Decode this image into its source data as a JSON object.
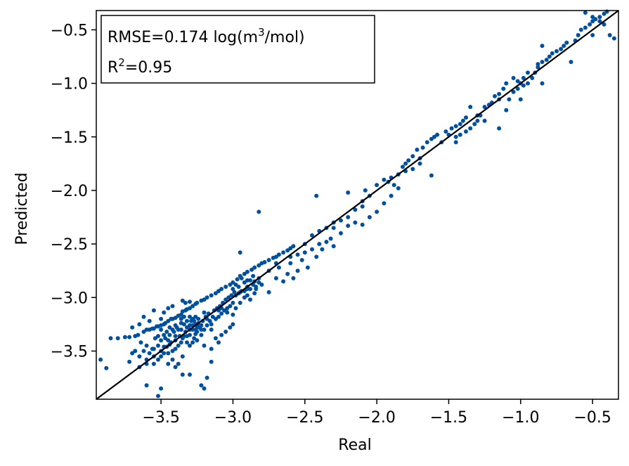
{
  "chart_data": {
    "type": "scatter",
    "xlabel": "Real",
    "ylabel": "Predicted",
    "xlim": [
      -3.95,
      -0.32
    ],
    "ylim": [
      -3.95,
      -0.32
    ],
    "xticks": [
      -3.5,
      -3.0,
      -2.5,
      -2.0,
      -1.5,
      -1.0,
      -0.5
    ],
    "yticks": [
      -3.5,
      -3.0,
      -2.5,
      -2.0,
      -1.5,
      -1.0,
      -0.5
    ],
    "xtick_labels": [
      "−3.5",
      "−3.0",
      "−2.5",
      "−2.0",
      "−1.5",
      "−1.0",
      "−0.5"
    ],
    "ytick_labels": [
      "−3.5",
      "−3.0",
      "−2.5",
      "−2.0",
      "−1.5",
      "−1.0",
      "−0.5"
    ],
    "grid": false,
    "point_color": "#0050A0",
    "line_color": "#000000",
    "reference_line": {
      "x": [
        -3.95,
        -0.32
      ],
      "y": [
        -3.95,
        -0.32
      ]
    },
    "annotation": {
      "rmse_text": "RMSE=0.174 log(m",
      "rmse_sup": "3",
      "rmse_end": "/mol)",
      "r2_text": "R",
      "r2_sup": "2",
      "r2_end": "=0.95"
    },
    "points": [
      [
        -3.92,
        -3.58
      ],
      [
        -3.88,
        -3.66
      ],
      [
        -3.85,
        -3.38
      ],
      [
        -3.8,
        -3.38
      ],
      [
        -3.75,
        -3.37
      ],
      [
        -3.72,
        -3.37
      ],
      [
        -3.7,
        -3.28
      ],
      [
        -3.68,
        -3.36
      ],
      [
        -3.66,
        -3.35
      ],
      [
        -3.65,
        -3.25
      ],
      [
        -3.62,
        -3.32
      ],
      [
        -3.6,
        -3.3
      ],
      [
        -3.58,
        -3.3
      ],
      [
        -3.56,
        -3.29
      ],
      [
        -3.55,
        -3.29
      ],
      [
        -3.53,
        -3.27
      ],
      [
        -3.52,
        -3.27
      ],
      [
        -3.5,
        -3.26
      ],
      [
        -3.48,
        -3.25
      ],
      [
        -3.47,
        -3.24
      ],
      [
        -3.45,
        -3.22
      ],
      [
        -3.43,
        -3.2
      ],
      [
        -3.42,
        -3.2
      ],
      [
        -3.4,
        -3.19
      ],
      [
        -3.38,
        -3.17
      ],
      [
        -3.36,
        -3.16
      ],
      [
        -3.35,
        -3.13
      ],
      [
        -3.33,
        -3.12
      ],
      [
        -3.32,
        -3.11
      ],
      [
        -3.3,
        -3.1
      ],
      [
        -3.28,
        -3.08
      ],
      [
        -3.26,
        -3.06
      ],
      [
        -3.25,
        -3.05
      ],
      [
        -3.22,
        -3.03
      ],
      [
        -3.2,
        -3.02
      ],
      [
        -3.18,
        -3.0
      ],
      [
        -3.15,
        -2.98
      ],
      [
        -3.12,
        -2.96
      ],
      [
        -3.1,
        -2.94
      ],
      [
        -3.08,
        -2.92
      ],
      [
        -3.05,
        -2.9
      ],
      [
        -3.02,
        -2.88
      ],
      [
        -3.0,
        -2.86
      ],
      [
        -2.97,
        -2.83
      ],
      [
        -2.95,
        -2.8
      ],
      [
        -2.92,
        -2.78
      ],
      [
        -2.9,
        -2.76
      ],
      [
        -2.87,
        -2.74
      ],
      [
        -2.85,
        -2.72
      ],
      [
        -2.82,
        -2.7
      ],
      [
        -2.8,
        -2.68
      ],
      [
        -2.78,
        -2.67
      ],
      [
        -2.75,
        -2.65
      ],
      [
        -2.72,
        -2.63
      ],
      [
        -2.7,
        -2.62
      ],
      [
        -2.68,
        -2.6
      ],
      [
        -2.65,
        -2.58
      ],
      [
        -2.62,
        -2.56
      ],
      [
        -2.6,
        -2.54
      ],
      [
        -2.58,
        -2.52
      ],
      [
        -3.7,
        -3.52
      ],
      [
        -3.65,
        -3.55
      ],
      [
        -3.62,
        -3.5
      ],
      [
        -3.6,
        -3.45
      ],
      [
        -3.58,
        -3.52
      ],
      [
        -3.56,
        -3.48
      ],
      [
        -3.55,
        -3.62
      ],
      [
        -3.52,
        -3.45
      ],
      [
        -3.5,
        -3.55
      ],
      [
        -3.5,
        -3.4
      ],
      [
        -3.48,
        -3.52
      ],
      [
        -3.47,
        -3.38
      ],
      [
        -3.46,
        -3.46
      ],
      [
        -3.45,
        -3.62
      ],
      [
        -3.44,
        -3.35
      ],
      [
        -3.43,
        -3.42
      ],
      [
        -3.42,
        -3.5
      ],
      [
        -3.41,
        -3.32
      ],
      [
        -3.4,
        -3.4
      ],
      [
        -3.39,
        -3.28
      ],
      [
        -3.38,
        -3.45
      ],
      [
        -3.37,
        -3.36
      ],
      [
        -3.36,
        -3.3
      ],
      [
        -3.35,
        -3.38
      ],
      [
        -3.34,
        -3.25
      ],
      [
        -3.33,
        -3.32
      ],
      [
        -3.32,
        -3.42
      ],
      [
        -3.31,
        -3.28
      ],
      [
        -3.3,
        -3.35
      ],
      [
        -3.29,
        -3.22
      ],
      [
        -3.28,
        -3.3
      ],
      [
        -3.27,
        -3.38
      ],
      [
        -3.26,
        -3.25
      ],
      [
        -3.25,
        -3.32
      ],
      [
        -3.24,
        -3.2
      ],
      [
        -3.23,
        -3.28
      ],
      [
        -3.22,
        -3.35
      ],
      [
        -3.21,
        -3.22
      ],
      [
        -3.2,
        -3.3
      ],
      [
        -3.19,
        -3.18
      ],
      [
        -3.18,
        -3.26
      ],
      [
        -3.17,
        -3.15
      ],
      [
        -3.16,
        -3.22
      ],
      [
        -3.15,
        -3.3
      ],
      [
        -3.14,
        -3.18
      ],
      [
        -3.13,
        -3.12
      ],
      [
        -3.12,
        -3.2
      ],
      [
        -3.11,
        -3.1
      ],
      [
        -3.1,
        -3.18
      ],
      [
        -3.09,
        -3.08
      ],
      [
        -3.08,
        -3.15
      ],
      [
        -3.07,
        -3.05
      ],
      [
        -3.06,
        -3.12
      ],
      [
        -3.05,
        -3.02
      ],
      [
        -3.04,
        -3.1
      ],
      [
        -3.03,
        -3.0
      ],
      [
        -3.02,
        -3.08
      ],
      [
        -3.01,
        -2.98
      ],
      [
        -3.0,
        -3.05
      ],
      [
        -2.99,
        -2.95
      ],
      [
        -3.38,
        -3.3
      ],
      [
        -3.36,
        -3.24
      ],
      [
        -3.34,
        -3.36
      ],
      [
        -3.32,
        -3.22
      ],
      [
        -3.3,
        -3.26
      ],
      [
        -3.28,
        -3.2
      ],
      [
        -3.26,
        -3.3
      ],
      [
        -3.24,
        -3.24
      ],
      [
        -3.22,
        -3.26
      ],
      [
        -3.2,
        -3.14
      ],
      [
        -3.36,
        -3.2
      ],
      [
        -3.34,
        -3.18
      ],
      [
        -3.32,
        -3.28
      ],
      [
        -3.3,
        -3.18
      ],
      [
        -3.28,
        -3.26
      ],
      [
        -3.26,
        -3.18
      ],
      [
        -3.24,
        -3.28
      ],
      [
        -3.3,
        -3.3
      ],
      [
        -3.27,
        -3.22
      ],
      [
        -3.25,
        -3.27
      ],
      [
        -3.4,
        -3.26
      ],
      [
        -3.42,
        -3.3
      ],
      [
        -3.44,
        -3.28
      ],
      [
        -3.46,
        -3.32
      ],
      [
        -3.48,
        -3.35
      ],
      [
        -3.5,
        -3.3
      ],
      [
        -3.52,
        -3.36
      ],
      [
        -3.54,
        -3.38
      ],
      [
        -3.45,
        -3.4
      ],
      [
        -3.4,
        -3.36
      ],
      [
        -3.33,
        -3.05
      ],
      [
        -3.35,
        -3.03
      ],
      [
        -3.3,
        -3.04
      ],
      [
        -3.45,
        -3.1
      ],
      [
        -3.42,
        -3.08
      ],
      [
        -3.55,
        -3.12
      ],
      [
        -3.62,
        -3.18
      ],
      [
        -3.5,
        -3.2
      ],
      [
        -3.58,
        -3.22
      ],
      [
        -3.48,
        -3.14
      ],
      [
        -3.6,
        -3.82
      ],
      [
        -3.52,
        -3.92
      ],
      [
        -3.5,
        -3.85
      ],
      [
        -3.4,
        -3.65
      ],
      [
        -3.35,
        -3.72
      ],
      [
        -3.3,
        -3.72
      ],
      [
        -3.22,
        -3.82
      ],
      [
        -3.2,
        -3.85
      ],
      [
        -3.18,
        -3.75
      ],
      [
        -3.15,
        -3.6
      ],
      [
        -3.72,
        -3.6
      ],
      [
        -3.68,
        -3.5
      ],
      [
        -3.64,
        -3.42
      ],
      [
        -3.6,
        -3.58
      ],
      [
        -3.55,
        -3.48
      ],
      [
        -3.52,
        -3.58
      ],
      [
        -3.45,
        -3.52
      ],
      [
        -3.42,
        -3.58
      ],
      [
        -3.38,
        -3.62
      ],
      [
        -3.35,
        -3.55
      ],
      [
        -3.3,
        -3.45
      ],
      [
        -3.25,
        -3.4
      ],
      [
        -3.2,
        -3.45
      ],
      [
        -3.15,
        -3.48
      ],
      [
        -3.12,
        -3.38
      ],
      [
        -3.08,
        -3.35
      ],
      [
        -3.05,
        -3.32
      ],
      [
        -3.02,
        -3.28
      ],
      [
        -3.1,
        -3.42
      ],
      [
        -3.0,
        -3.25
      ],
      [
        -3.12,
        -3.2
      ],
      [
        -3.08,
        -3.1
      ],
      [
        -3.04,
        -3.14
      ],
      [
        -3.0,
        -3.16
      ],
      [
        -2.98,
        -3.1
      ],
      [
        -2.95,
        -3.05
      ],
      [
        -2.92,
        -3.0
      ],
      [
        -2.9,
        -2.98
      ],
      [
        -2.88,
        -3.02
      ],
      [
        -2.85,
        -2.96
      ],
      [
        -3.0,
        -2.92
      ],
      [
        -2.98,
        -2.88
      ],
      [
        -2.96,
        -2.9
      ],
      [
        -2.94,
        -2.94
      ],
      [
        -2.92,
        -2.86
      ],
      [
        -2.9,
        -2.9
      ],
      [
        -2.88,
        -2.84
      ],
      [
        -2.86,
        -2.88
      ],
      [
        -2.84,
        -2.92
      ],
      [
        -2.82,
        -2.86
      ],
      [
        -2.98,
        -2.98
      ],
      [
        -2.96,
        -2.96
      ],
      [
        -2.94,
        -2.82
      ],
      [
        -2.92,
        -2.94
      ],
      [
        -2.9,
        -2.84
      ],
      [
        -2.88,
        -2.92
      ],
      [
        -2.86,
        -2.8
      ],
      [
        -2.84,
        -2.9
      ],
      [
        -2.82,
        -2.82
      ],
      [
        -2.8,
        -2.88
      ],
      [
        -2.95,
        -2.58
      ],
      [
        -2.82,
        -2.2
      ],
      [
        -2.75,
        -2.95
      ],
      [
        -2.7,
        -2.82
      ],
      [
        -2.68,
        -2.72
      ],
      [
        -2.65,
        -2.85
      ],
      [
        -2.62,
        -2.78
      ],
      [
        -2.6,
        -2.68
      ],
      [
        -2.58,
        -2.82
      ],
      [
        -2.55,
        -2.75
      ],
      [
        -2.55,
        -2.6
      ],
      [
        -2.52,
        -2.65
      ],
      [
        -2.5,
        -2.58
      ],
      [
        -2.48,
        -2.72
      ],
      [
        -2.45,
        -2.55
      ],
      [
        -2.42,
        -2.62
      ],
      [
        -2.4,
        -2.5
      ],
      [
        -2.38,
        -2.55
      ],
      [
        -2.35,
        -2.48
      ],
      [
        -2.32,
        -2.45
      ],
      [
        -2.5,
        -2.5
      ],
      [
        -2.45,
        -2.42
      ],
      [
        -2.4,
        -2.38
      ],
      [
        -2.35,
        -2.35
      ],
      [
        -2.3,
        -2.3
      ],
      [
        -2.25,
        -2.28
      ],
      [
        -2.2,
        -2.25
      ],
      [
        -2.15,
        -2.18
      ],
      [
        -2.1,
        -2.1
      ],
      [
        -2.05,
        -2.05
      ],
      [
        -2.3,
        -2.52
      ],
      [
        -2.25,
        -2.4
      ],
      [
        -2.2,
        -2.33
      ],
      [
        -2.15,
        -2.3
      ],
      [
        -2.1,
        -2.32
      ],
      [
        -2.05,
        -2.25
      ],
      [
        -2.0,
        -2.2
      ],
      [
        -1.95,
        -2.12
      ],
      [
        -1.9,
        -2.05
      ],
      [
        -1.85,
        -1.98
      ],
      [
        -2.42,
        -2.05
      ],
      [
        -2.2,
        -2.02
      ],
      [
        -2.08,
        -2.0
      ],
      [
        -2.0,
        -1.95
      ],
      [
        -1.95,
        -1.9
      ],
      [
        -1.9,
        -1.88
      ],
      [
        -1.85,
        -1.85
      ],
      [
        -1.8,
        -1.82
      ],
      [
        -1.75,
        -1.8
      ],
      [
        -1.7,
        -1.75
      ],
      [
        -1.92,
        -1.92
      ],
      [
        -1.88,
        -1.95
      ],
      [
        -1.8,
        -1.75
      ],
      [
        -1.78,
        -1.72
      ],
      [
        -1.75,
        -1.68
      ],
      [
        -1.72,
        -1.62
      ],
      [
        -1.68,
        -1.6
      ],
      [
        -1.65,
        -1.55
      ],
      [
        -1.62,
        -1.52
      ],
      [
        -1.6,
        -1.5
      ],
      [
        -1.62,
        -1.86
      ],
      [
        -1.58,
        -1.48
      ],
      [
        -1.55,
        -1.55
      ],
      [
        -1.52,
        -1.45
      ],
      [
        -1.5,
        -1.48
      ],
      [
        -1.48,
        -1.42
      ],
      [
        -1.45,
        -1.4
      ],
      [
        -1.42,
        -1.38
      ],
      [
        -1.4,
        -1.35
      ],
      [
        -1.38,
        -1.32
      ],
      [
        -1.45,
        -1.55
      ],
      [
        -1.42,
        -1.48
      ],
      [
        -1.38,
        -1.45
      ],
      [
        -1.35,
        -1.42
      ],
      [
        -1.32,
        -1.38
      ],
      [
        -1.3,
        -1.35
      ],
      [
        -1.28,
        -1.3
      ],
      [
        -1.25,
        -1.22
      ],
      [
        -1.22,
        -1.2
      ],
      [
        -1.2,
        -1.18
      ],
      [
        -1.35,
        -1.22
      ],
      [
        -1.18,
        -1.12
      ],
      [
        -1.15,
        -1.1
      ],
      [
        -1.12,
        -1.05
      ],
      [
        -1.1,
        -1.0
      ],
      [
        -1.05,
        -0.95
      ],
      [
        -1.02,
        -0.98
      ],
      [
        -1.0,
        -1.0
      ],
      [
        -0.98,
        -0.95
      ],
      [
        -0.95,
        -0.9
      ],
      [
        -1.15,
        -1.42
      ],
      [
        -1.1,
        -1.25
      ],
      [
        -1.08,
        -1.15
      ],
      [
        -1.05,
        -1.08
      ],
      [
        -1.02,
        -1.05
      ],
      [
        -0.98,
        -1.02
      ],
      [
        -0.95,
        -1.0
      ],
      [
        -0.92,
        -0.95
      ],
      [
        -0.9,
        -0.9
      ],
      [
        -0.88,
        -0.85
      ],
      [
        -1.0,
        -1.15
      ],
      [
        -0.88,
        -0.82
      ],
      [
        -0.85,
        -0.8
      ],
      [
        -0.82,
        -0.78
      ],
      [
        -0.8,
        -0.75
      ],
      [
        -0.78,
        -0.72
      ],
      [
        -0.75,
        -0.7
      ],
      [
        -0.72,
        -0.68
      ],
      [
        -0.7,
        -0.65
      ],
      [
        -0.68,
        -0.62
      ],
      [
        -0.85,
        -1.0
      ],
      [
        -0.85,
        -0.65
      ],
      [
        -0.65,
        -0.8
      ],
      [
        -0.62,
        -0.6
      ],
      [
        -0.6,
        -0.55
      ],
      [
        -0.58,
        -0.5
      ],
      [
        -0.55,
        -0.48
      ],
      [
        -0.52,
        -0.45
      ],
      [
        -0.5,
        -0.42
      ],
      [
        -0.48,
        -0.4
      ],
      [
        -0.5,
        -0.55
      ],
      [
        -0.45,
        -0.38
      ],
      [
        -0.42,
        -0.35
      ],
      [
        -0.4,
        -0.33
      ],
      [
        -0.38,
        -0.55
      ],
      [
        -0.35,
        -0.58
      ],
      [
        -0.55,
        -0.34
      ],
      [
        -0.5,
        -0.38
      ],
      [
        -0.45,
        -0.42
      ],
      [
        -0.42,
        -0.45
      ],
      [
        -1.45,
        -1.5
      ],
      [
        -1.25,
        -1.35
      ],
      [
        -1.15,
        -1.15
      ],
      [
        -1.3,
        -1.3
      ],
      [
        -1.7,
        -1.7
      ],
      [
        -1.82,
        -1.78
      ],
      [
        -2.1,
        -2.15
      ],
      [
        -2.3,
        -2.35
      ],
      [
        -2.6,
        -2.62
      ],
      [
        -2.7,
        -2.68
      ],
      [
        -2.75,
        -2.75
      ],
      [
        -2.85,
        -2.85
      ],
      [
        -2.9,
        -2.92
      ],
      [
        -2.95,
        -2.95
      ],
      [
        -3.05,
        -3.12
      ],
      [
        -3.1,
        -3.12
      ],
      [
        -3.15,
        -3.25
      ],
      [
        -3.18,
        -3.2
      ],
      [
        -3.22,
        -3.3
      ],
      [
        -3.26,
        -3.34
      ],
      [
        -3.28,
        -3.42
      ],
      [
        -3.32,
        -3.36
      ],
      [
        -3.36,
        -3.42
      ],
      [
        -3.4,
        -3.48
      ],
      [
        -3.44,
        -3.44
      ],
      [
        -3.48,
        -3.46
      ],
      [
        -3.5,
        -3.5
      ],
      [
        -3.55,
        -3.55
      ],
      [
        -3.6,
        -3.62
      ],
      [
        -3.65,
        -3.65
      ]
    ]
  }
}
